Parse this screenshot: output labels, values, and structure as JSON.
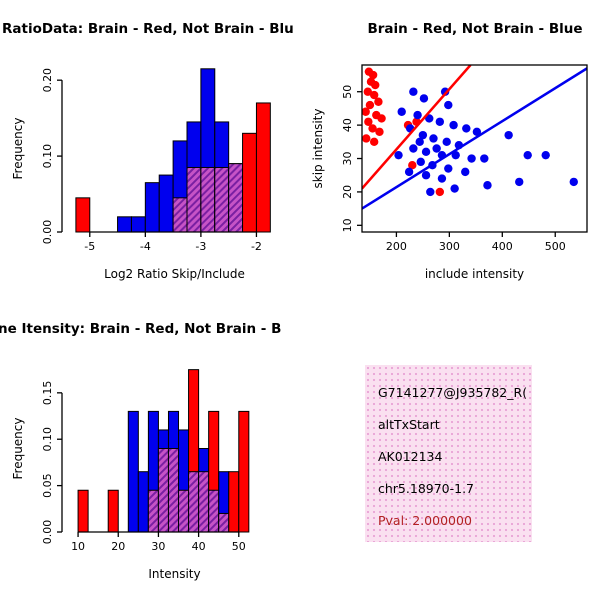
{
  "window": {
    "background": "#FFFFFF"
  },
  "colors": {
    "brain_red": "#FF0000",
    "not_brain_blue": "#0000EE",
    "overlap_base": "#C653C6",
    "overlap_stripe": "#7A1FA2"
  },
  "chart_data": [
    {
      "type": "histogram",
      "title": "RatioData: Brain - Red, Not Brain - Blu",
      "xlabel": "Log2 Ratio Skip/Include",
      "ylabel": "Frequency",
      "xlim": [
        -5.5,
        -1.45
      ],
      "ylim": [
        0,
        0.22
      ],
      "xticks": [
        -5,
        -4,
        -3,
        -2
      ],
      "yticks": [
        0,
        0.1,
        0.2
      ],
      "ytick_labels": [
        "0.00",
        "0.10",
        "0.20"
      ],
      "bin_start": -5.25,
      "bin_width": 0.25,
      "legend_note": "Brain - Red, Not Brain - Blue, overlap hatched purple",
      "series": [
        {
          "name": "Brain",
          "color": "#FF0000",
          "values": [
            0.045,
            0,
            0,
            0,
            0,
            0,
            0,
            0.045,
            0.085,
            0.085,
            0.085,
            0.09,
            0.13,
            0.17
          ]
        },
        {
          "name": "Not Brain",
          "color": "#0000EE",
          "values": [
            0,
            0,
            0,
            0.02,
            0.02,
            0.065,
            0.075,
            0.12,
            0.145,
            0.215,
            0.145,
            0.09,
            0,
            0
          ]
        }
      ],
      "overlap": {
        "base": "#C653C6",
        "stripe": "#7A1FA2"
      }
    },
    {
      "type": "scatter",
      "title": "Brain - Red, Not Brain - Blue",
      "xlabel": "include intensity",
      "ylabel": "skip intensity",
      "xlim": [
        135,
        560
      ],
      "ylim": [
        8,
        58
      ],
      "xticks": [
        200,
        300,
        400,
        500
      ],
      "yticks": [
        10,
        20,
        30,
        40,
        50
      ],
      "series": [
        {
          "name": "Brain",
          "color": "#FF0000",
          "points": [
            [
              148,
              56
            ],
            [
              156,
              55
            ],
            [
              152,
              53
            ],
            [
              160,
              52
            ],
            [
              146,
              50
            ],
            [
              158,
              49
            ],
            [
              166,
              47
            ],
            [
              150,
              46
            ],
            [
              142,
              44
            ],
            [
              162,
              43
            ],
            [
              172,
              42
            ],
            [
              147,
              41
            ],
            [
              155,
              39
            ],
            [
              168,
              38
            ],
            [
              143,
              36
            ],
            [
              158,
              35
            ],
            [
              238,
              41
            ],
            [
              222,
              40
            ],
            [
              230,
              28
            ],
            [
              282,
              20
            ]
          ],
          "line": [
            135,
            21,
            340,
            58
          ]
        },
        {
          "name": "Not Brain",
          "color": "#0000EE",
          "points": [
            [
              210,
              44
            ],
            [
              232,
              50
            ],
            [
              252,
              48
            ],
            [
              292,
              50
            ],
            [
              298,
              46
            ],
            [
              240,
              43
            ],
            [
              262,
              42
            ],
            [
              282,
              41
            ],
            [
              308,
              40
            ],
            [
              226,
              39
            ],
            [
              332,
              39
            ],
            [
              352,
              38
            ],
            [
              250,
              37
            ],
            [
              270,
              36
            ],
            [
              244,
              35
            ],
            [
              295,
              35
            ],
            [
              318,
              34
            ],
            [
              232,
              33
            ],
            [
              276,
              33
            ],
            [
              256,
              32
            ],
            [
              286,
              31
            ],
            [
              312,
              31
            ],
            [
              204,
              31
            ],
            [
              342,
              30
            ],
            [
              366,
              30
            ],
            [
              246,
              29
            ],
            [
              268,
              28
            ],
            [
              298,
              27
            ],
            [
              224,
              26
            ],
            [
              330,
              26
            ],
            [
              256,
              25
            ],
            [
              286,
              24
            ],
            [
              412,
              37
            ],
            [
              448,
              31
            ],
            [
              482,
              31
            ],
            [
              432,
              23
            ],
            [
              535,
              23
            ],
            [
              372,
              22
            ],
            [
              310,
              21
            ],
            [
              264,
              20
            ]
          ],
          "line": [
            135,
            15,
            560,
            57
          ]
        }
      ]
    },
    {
      "type": "histogram",
      "title": "ne Itensity: Brain - Red, Not Brain - B",
      "xlabel": "Intensity",
      "ylabel": "Frequency",
      "xlim": [
        6,
        62
      ],
      "ylim": [
        0,
        0.18
      ],
      "xticks": [
        10,
        20,
        30,
        40,
        50
      ],
      "yticks": [
        0,
        0.05,
        0.1,
        0.15
      ],
      "ytick_labels": [
        "0.00",
        "0.05",
        "0.10",
        "0.15"
      ],
      "bin_start": 10,
      "bin_width": 2.5,
      "legend_note": "Brain - Red, Not Brain - Blue, overlap hatched purple",
      "series": [
        {
          "name": "Brain",
          "color": "#FF0000",
          "values": [
            0.045,
            0,
            0,
            0.045,
            0,
            0,
            0,
            0.045,
            0.09,
            0.09,
            0.045,
            0.175,
            0.065,
            0.13,
            0.02,
            0.065,
            0.13
          ]
        },
        {
          "name": "Not Brain",
          "color": "#0000EE",
          "values": [
            0,
            0,
            0,
            0,
            0,
            0.13,
            0.065,
            0.13,
            0.11,
            0.13,
            0.11,
            0.065,
            0.09,
            0.045,
            0.065,
            0,
            0
          ]
        }
      ],
      "overlap": {
        "base": "#C653C6",
        "stripe": "#7A1FA2"
      }
    }
  ],
  "info_box": {
    "gene_id": "G7141277@J935782_R(",
    "event_type": "altTxStart",
    "accession": "AK012134",
    "locus": "chr5.18970-1.7",
    "pval": "Pval: 2.000000",
    "pval_color": "#B22222",
    "background": "#FAE0F0"
  }
}
